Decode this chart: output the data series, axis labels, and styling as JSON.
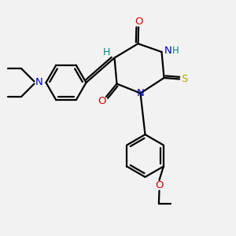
{
  "bg_color": "#f2f2f2",
  "bond_color": "#000000",
  "bond_width": 1.6,
  "atom_colors": {
    "N": "#0000cc",
    "O": "#dd0000",
    "S": "#aaaa00",
    "H": "#008888",
    "C": "#000000"
  },
  "font_size": 9.5
}
